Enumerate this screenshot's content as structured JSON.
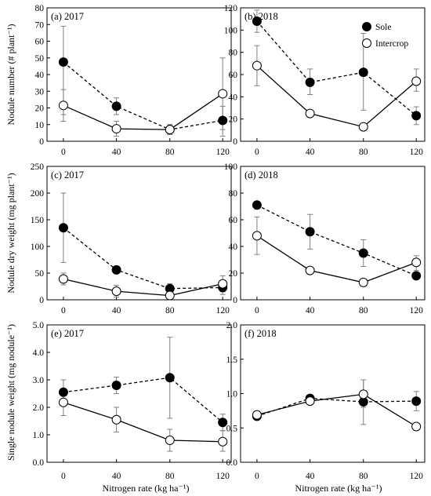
{
  "figure": {
    "x_axis_title": "Nitrogen rate (kg ha⁻¹)",
    "row_titles": [
      "Nodule number (# plant⁻¹)",
      "Nodule dry weight (mg  plant⁻¹)",
      "Single nodule weight (mg  nodule⁻¹)"
    ],
    "legend": {
      "placement": "top-right of panel (b)",
      "entries": [
        "Sole",
        "Intercrop"
      ]
    },
    "colors": {
      "sole": "#000000",
      "intercrop": "#ffffff",
      "axis": "#000000"
    }
  },
  "chart_data": [
    {
      "panel": "a",
      "title": "(a) 2017",
      "type": "line",
      "categories": [
        "0",
        "40",
        "80",
        "120"
      ],
      "ylim": [
        0,
        80
      ],
      "yticks": [
        "0",
        "10",
        "20",
        "30",
        "40",
        "50",
        "60",
        "70",
        "80"
      ],
      "series": [
        {
          "name": "Sole",
          "style": "dashed-filled",
          "values": [
            47.5,
            21,
            7,
            12.5
          ],
          "err_low": [
            16,
            16,
            4,
            3
          ],
          "err_high": [
            69,
            26,
            10,
            21
          ]
        },
        {
          "name": "Intercrop",
          "style": "solid-open",
          "values": [
            21.5,
            7.5,
            7,
            28.5
          ],
          "err_low": [
            12,
            3,
            4,
            7
          ],
          "err_high": [
            31,
            12,
            10,
            50
          ]
        }
      ]
    },
    {
      "panel": "b",
      "title": "(b) 2018",
      "type": "line",
      "categories": [
        "0",
        "40",
        "80",
        "120"
      ],
      "ylim": [
        0,
        120
      ],
      "yticks": [
        "0",
        "20",
        "40",
        "60",
        "80",
        "100",
        "120"
      ],
      "series": [
        {
          "name": "Sole",
          "style": "dashed-filled",
          "values": [
            108,
            53,
            62,
            23
          ],
          "err_low": [
            98,
            42,
            28,
            15
          ],
          "err_high": [
            118,
            65,
            97,
            31
          ]
        },
        {
          "name": "Intercrop",
          "style": "solid-open",
          "values": [
            68,
            25,
            13,
            54
          ],
          "err_low": [
            50,
            25,
            13,
            45
          ],
          "err_high": [
            86,
            25,
            13,
            65
          ]
        }
      ]
    },
    {
      "panel": "c",
      "title": "(c) 2017",
      "type": "line",
      "categories": [
        "0",
        "40",
        "80",
        "120"
      ],
      "ylim": [
        0,
        250
      ],
      "yticks": [
        "0",
        "50",
        "100",
        "150",
        "200",
        "250"
      ],
      "series": [
        {
          "name": "Sole",
          "style": "dashed-filled",
          "values": [
            135,
            56,
            21,
            23
          ],
          "err_low": [
            70,
            50,
            12,
            10
          ],
          "err_high": [
            200,
            62,
            30,
            36
          ]
        },
        {
          "name": "Intercrop",
          "style": "solid-open",
          "values": [
            39,
            16,
            8,
            30
          ],
          "err_low": [
            28,
            5,
            5,
            15
          ],
          "err_high": [
            50,
            27,
            11,
            45
          ]
        }
      ]
    },
    {
      "panel": "d",
      "title": "(d) 2018",
      "type": "line",
      "categories": [
        "0",
        "40",
        "80",
        "120"
      ],
      "ylim": [
        0,
        100
      ],
      "yticks": [
        "0",
        "20",
        "40",
        "60",
        "80",
        "100"
      ],
      "series": [
        {
          "name": "Sole",
          "style": "dashed-filled",
          "values": [
            71,
            51,
            35,
            18
          ],
          "err_low": [
            71,
            38,
            25,
            18
          ],
          "err_high": [
            71,
            64,
            45,
            18
          ]
        },
        {
          "name": "Intercrop",
          "style": "solid-open",
          "values": [
            48,
            22,
            13,
            28
          ],
          "err_low": [
            34,
            22,
            13,
            22
          ],
          "err_high": [
            62,
            22,
            13,
            33
          ]
        }
      ]
    },
    {
      "panel": "e",
      "title": "(e) 2017",
      "type": "line",
      "categories": [
        "0",
        "40",
        "80",
        "120"
      ],
      "ylim": [
        0,
        5
      ],
      "yticks": [
        "0.0",
        "1.0",
        "2.0",
        "3.0",
        "4.0",
        "5.0"
      ],
      "series": [
        {
          "name": "Sole",
          "style": "dashed-filled",
          "values": [
            2.55,
            2.8,
            3.08,
            1.45
          ],
          "err_low": [
            2.1,
            2.5,
            1.6,
            1.15
          ],
          "err_high": [
            3.0,
            3.1,
            4.55,
            1.75
          ]
        },
        {
          "name": "Intercrop",
          "style": "solid-open",
          "values": [
            2.18,
            1.55,
            0.8,
            0.75
          ],
          "err_low": [
            1.7,
            1.1,
            0.4,
            0.4
          ],
          "err_high": [
            2.65,
            2.0,
            1.2,
            1.15
          ]
        }
      ]
    },
    {
      "panel": "f",
      "title": "(f) 2018",
      "type": "line",
      "categories": [
        "0",
        "40",
        "80",
        "120"
      ],
      "ylim": [
        0,
        2
      ],
      "yticks": [
        "0.0",
        "0.5",
        "1.0",
        "1.5",
        "2.0"
      ],
      "series": [
        {
          "name": "Sole",
          "style": "dashed-filled",
          "values": [
            0.67,
            0.93,
            0.88,
            0.89
          ],
          "err_low": [
            0.67,
            0.93,
            0.55,
            0.75
          ],
          "err_high": [
            0.67,
            0.93,
            1.2,
            1.03
          ]
        },
        {
          "name": "Intercrop",
          "style": "solid-open",
          "values": [
            0.69,
            0.89,
            0.99,
            0.52
          ],
          "err_low": [
            0.69,
            0.89,
            0.8,
            0.52
          ],
          "err_high": [
            0.69,
            0.89,
            1.2,
            0.52
          ]
        }
      ]
    }
  ]
}
